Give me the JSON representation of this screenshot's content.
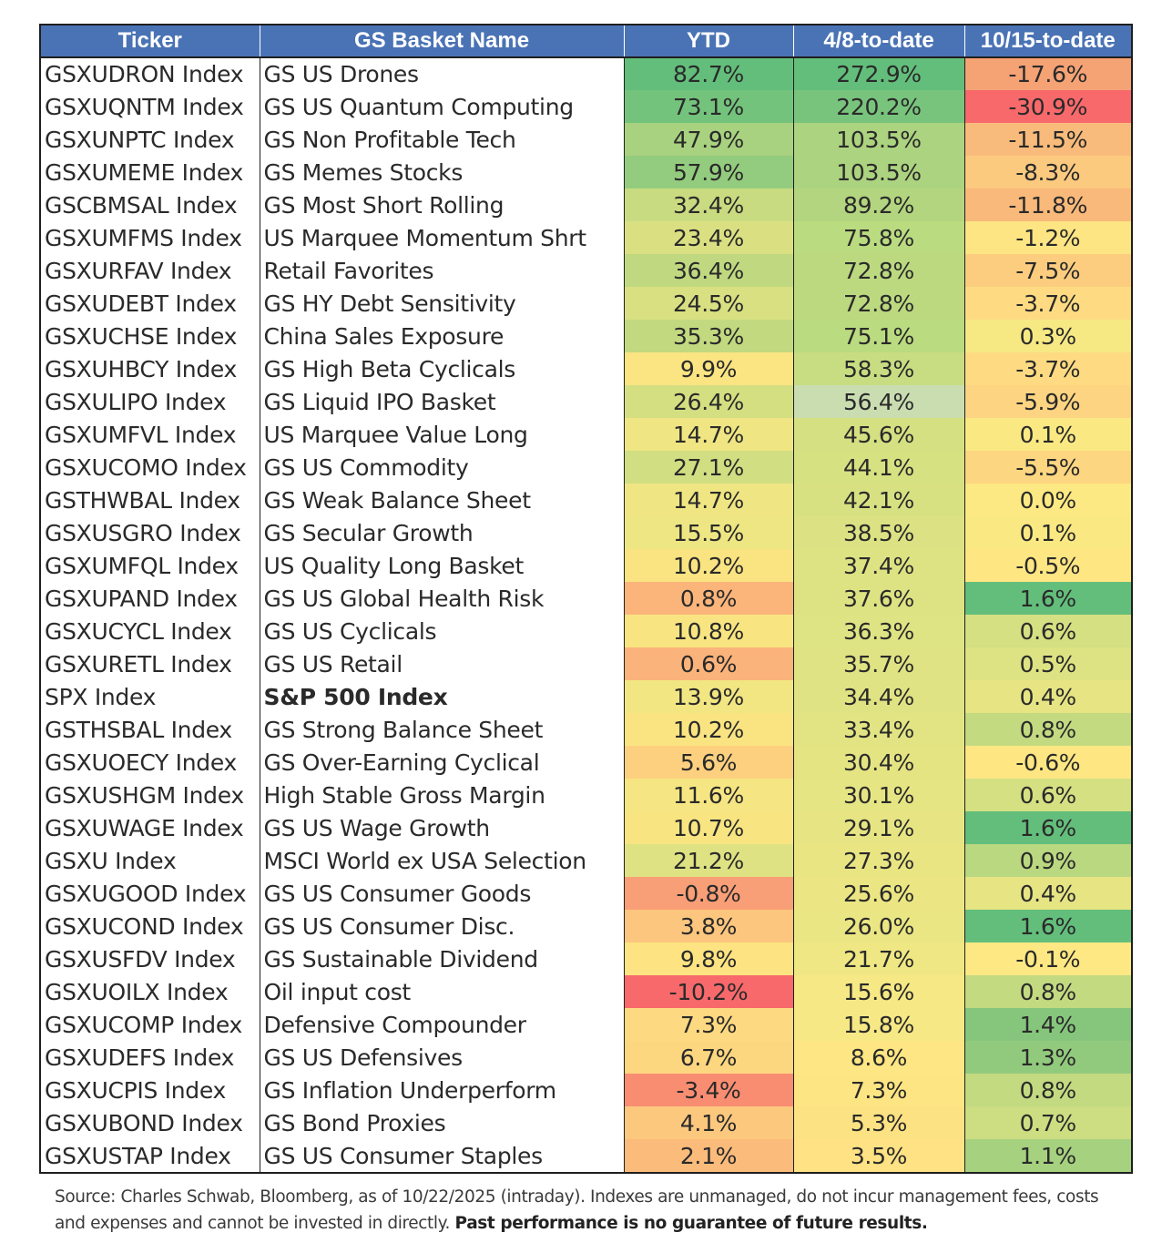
{
  "table": {
    "headers": [
      "Ticker",
      "GS Basket Name",
      "YTD",
      "4/8-to-date",
      "10/15-to-date"
    ],
    "rows": [
      {
        "ticker": "GSXUDRON Index",
        "name": "GS US Drones",
        "ytd": "82.7%",
        "apr": "272.9%",
        "oct": "-17.6%",
        "bold": false,
        "ytd_color": "#63be7b",
        "apr_color": "#63be7b",
        "oct_color": "#f5a275"
      },
      {
        "ticker": "GSXUQNTM Index",
        "name": "GS US Quantum Computing",
        "ytd": "73.1%",
        "apr": "220.2%",
        "oct": "-30.9%",
        "bold": false,
        "ytd_color": "#74c37c",
        "apr_color": "#79c47d",
        "oct_color": "#f8696b"
      },
      {
        "ticker": "GSXUNPTC Index",
        "name": "GS Non Profitable Tech",
        "ytd": "47.9%",
        "apr": "103.5%",
        "oct": "-11.5%",
        "bold": false,
        "ytd_color": "#a8d27f",
        "apr_color": "#acd37f",
        "oct_color": "#f9bb7b"
      },
      {
        "ticker": "GSXUMEME Index",
        "name": "GS Memes Stocks",
        "ytd": "57.9%",
        "apr": "103.5%",
        "oct": "-8.3%",
        "bold": false,
        "ytd_color": "#93cc7e",
        "apr_color": "#acd37f",
        "oct_color": "#fcca7f"
      },
      {
        "ticker": "GSCBMSAL Index",
        "name": "GS Most Short Rolling",
        "ytd": "32.4%",
        "apr": "89.2%",
        "oct": "-11.8%",
        "bold": false,
        "ytd_color": "#c8db80",
        "apr_color": "#b3d57f",
        "oct_color": "#f9b97a"
      },
      {
        "ticker": "GSXUMFMS Index",
        "name": "US Marquee Momentum Shrt",
        "ytd": "23.4%",
        "apr": "75.8%",
        "oct": "-1.2%",
        "bold": false,
        "ytd_color": "#dae082",
        "apr_color": "#badb80",
        "oct_color": "#fee583"
      },
      {
        "ticker": "GSXURFAV Index",
        "name": "Retail Favorites",
        "ytd": "36.4%",
        "apr": "72.8%",
        "oct": "-7.5%",
        "bold": false,
        "ytd_color": "#c0d980",
        "apr_color": "#bcd980",
        "oct_color": "#fccd7f"
      },
      {
        "ticker": "GSXUDEBT Index",
        "name": "GS HY Debt Sensitivity",
        "ytd": "24.5%",
        "apr": "72.8%",
        "oct": "-3.7%",
        "bold": false,
        "ytd_color": "#d8e082",
        "apr_color": "#bcd980",
        "oct_color": "#fedb82"
      },
      {
        "ticker": "GSXUCHSE Index",
        "name": "China Sales Exposure",
        "ytd": "35.3%",
        "apr": "75.1%",
        "oct": "0.3%",
        "bold": false,
        "ytd_color": "#c2d980",
        "apr_color": "#badb80",
        "oct_color": "#f6e984"
      },
      {
        "ticker": "GSXUHBCY Index",
        "name": "GS High Beta Cyclicals",
        "ytd": "9.9%",
        "apr": "58.3%",
        "oct": "-3.7%",
        "bold": false,
        "ytd_color": "#fbe482",
        "apr_color": "#c8dd81",
        "oct_color": "#fedb82"
      },
      {
        "ticker": "GSXULIPO Index",
        "name": "GS Liquid IPO Basket",
        "ytd": "26.4%",
        "apr": "56.4%",
        "oct": "-5.9%",
        "bold": false,
        "ytd_color": "#d3df81",
        "apr_color": "#caddb1",
        "oct_color": "#fdd481"
      },
      {
        "ticker": "GSXUMFVL Index",
        "name": "US Marquee Value Long",
        "ytd": "14.7%",
        "apr": "45.6%",
        "oct": "0.1%",
        "bold": false,
        "ytd_color": "#efe683",
        "apr_color": "#d4e082",
        "oct_color": "#fae983"
      },
      {
        "ticker": "GSXUCOMO Index",
        "name": "GS US Commodity",
        "ytd": "27.1%",
        "apr": "44.1%",
        "oct": "-5.5%",
        "bold": false,
        "ytd_color": "#d1de81",
        "apr_color": "#d6e182",
        "oct_color": "#fdd681"
      },
      {
        "ticker": "GSTHWBAL Index",
        "name": "GS Weak Balance Sheet",
        "ytd": "14.7%",
        "apr": "42.1%",
        "oct": "0.0%",
        "bold": false,
        "ytd_color": "#efe683",
        "apr_color": "#d8e182",
        "oct_color": "#fde983"
      },
      {
        "ticker": "GSXUSGRO Index",
        "name": "GS Secular Growth",
        "ytd": "15.5%",
        "apr": "38.5%",
        "oct": "0.1%",
        "bold": false,
        "ytd_color": "#ede683",
        "apr_color": "#dce283",
        "oct_color": "#fae983"
      },
      {
        "ticker": "GSXUMFQL Index",
        "name": "US Quality Long Basket",
        "ytd": "10.2%",
        "apr": "37.4%",
        "oct": "-0.5%",
        "bold": false,
        "ytd_color": "#fae482",
        "apr_color": "#dde383",
        "oct_color": "#fee683"
      },
      {
        "ticker": "GSXUPAND Index",
        "name": "GS US Global Health Risk",
        "ytd": "0.8%",
        "apr": "37.6%",
        "oct": "1.6%",
        "bold": false,
        "ytd_color": "#fbb57a",
        "apr_color": "#dde383",
        "oct_color": "#63be7b"
      },
      {
        "ticker": "GSXUCYCL Index",
        "name": "GS US Cyclicals",
        "ytd": "10.8%",
        "apr": "36.3%",
        "oct": "0.6%",
        "bold": false,
        "ytd_color": "#f8e582",
        "apr_color": "#dee383",
        "oct_color": "#d4e082"
      },
      {
        "ticker": "GSXURETL Index",
        "name": "GS US Retail",
        "ytd": "0.6%",
        "apr": "35.7%",
        "oct": "0.5%",
        "bold": false,
        "ytd_color": "#fab37a",
        "apr_color": "#dfe383",
        "oct_color": "#dde383"
      },
      {
        "ticker": "SPX Index",
        "name": "S&P 500 Index",
        "ytd": "13.9%",
        "apr": "34.4%",
        "oct": "0.4%",
        "bold": true,
        "ytd_color": "#f2e683",
        "apr_color": "#e0e383",
        "oct_color": "#e6e483"
      },
      {
        "ticker": "GSTHSBAL Index",
        "name": "GS Strong Balance Sheet",
        "ytd": "10.2%",
        "apr": "33.4%",
        "oct": "0.8%",
        "bold": false,
        "ytd_color": "#fae482",
        "apr_color": "#e2e483",
        "oct_color": "#c3da81"
      },
      {
        "ticker": "GSXUOECY Index",
        "name": "GS Over-Earning Cyclical",
        "ytd": "5.6%",
        "apr": "30.4%",
        "oct": "-0.6%",
        "bold": false,
        "ytd_color": "#fdd07f",
        "apr_color": "#e5e483",
        "oct_color": "#fee683"
      },
      {
        "ticker": "GSXUSHGM Index",
        "name": "High Stable Gross Margin",
        "ytd": "11.6%",
        "apr": "30.1%",
        "oct": "0.6%",
        "bold": false,
        "ytd_color": "#f6e583",
        "apr_color": "#e6e583",
        "oct_color": "#d4e082"
      },
      {
        "ticker": "GSXUWAGE Index",
        "name": "GS US Wage Growth",
        "ytd": "10.7%",
        "apr": "29.1%",
        "oct": "1.6%",
        "bold": false,
        "ytd_color": "#f8e582",
        "apr_color": "#e7e583",
        "oct_color": "#63be7b"
      },
      {
        "ticker": "GSXU Index",
        "name": "MSCI World ex USA Selection",
        "ytd": "21.2%",
        "apr": "27.3%",
        "oct": "0.9%",
        "bold": false,
        "ytd_color": "#dfe283",
        "apr_color": "#e9e583",
        "oct_color": "#bad880"
      },
      {
        "ticker": "GSXUGOOD Index",
        "name": "GS US Consumer Goods",
        "ytd": "-0.8%",
        "apr": "25.6%",
        "oct": "0.4%",
        "bold": false,
        "ytd_color": "#f99f77",
        "apr_color": "#ebe683",
        "oct_color": "#e6e483"
      },
      {
        "ticker": "GSXUCOND Index",
        "name": "GS US Consumer Disc.",
        "ytd": "3.8%",
        "apr": "26.0%",
        "oct": "1.6%",
        "bold": false,
        "ytd_color": "#fcc67e",
        "apr_color": "#eae683",
        "oct_color": "#63be7b"
      },
      {
        "ticker": "GSXUSFDV Index",
        "name": "GS Sustainable Dividend",
        "ytd": "9.8%",
        "apr": "21.7%",
        "oct": "-0.1%",
        "bold": false,
        "ytd_color": "#fde382",
        "apr_color": "#efe783",
        "oct_color": "#fee883"
      },
      {
        "ticker": "GSXUOILX Index",
        "name": "Oil input cost",
        "ytd": "-10.2%",
        "apr": "15.6%",
        "oct": "0.8%",
        "bold": false,
        "ytd_color": "#f8696b",
        "apr_color": "#f6e884",
        "oct_color": "#c3da81"
      },
      {
        "ticker": "GSXUCOMP Index",
        "name": "Defensive Compounder",
        "ytd": "7.3%",
        "apr": "15.8%",
        "oct": "1.4%",
        "bold": false,
        "ytd_color": "#fdd981",
        "apr_color": "#f6e884",
        "oct_color": "#86c67c"
      },
      {
        "ticker": "GSXUDEFS Index",
        "name": "GS US Defensives",
        "ytd": "6.7%",
        "apr": "8.6%",
        "oct": "1.3%",
        "bold": false,
        "ytd_color": "#fdd680",
        "apr_color": "#fde683",
        "oct_color": "#92ca7d"
      },
      {
        "ticker": "GSXUCPIS Index",
        "name": "GS Inflation Underperform",
        "ytd": "-3.4%",
        "apr": "7.3%",
        "oct": "0.8%",
        "bold": false,
        "ytd_color": "#f98d72",
        "apr_color": "#fde583",
        "oct_color": "#c3da81"
      },
      {
        "ticker": "GSXUBOND Index",
        "name": "GS Bond Proxies",
        "ytd": "4.1%",
        "apr": "5.3%",
        "oct": "0.7%",
        "bold": false,
        "ytd_color": "#fcc87e",
        "apr_color": "#fde283",
        "oct_color": "#ccdd82"
      },
      {
        "ticker": "GSXUSTAP Index",
        "name": "GS US Consumer Staples",
        "ytd": "2.1%",
        "apr": "3.5%",
        "oct": "1.1%",
        "bold": false,
        "ytd_color": "#fbbb7b",
        "apr_color": "#fee283",
        "oct_color": "#a6d17f"
      }
    ]
  },
  "footnote": {
    "text": "Source: Charles Schwab, Bloomberg, as of 10/22/2025 (intraday). Indexes are unmanaged, do not incur management fees, costs and expenses and cannot be invested in directly. ",
    "bold_text": "Past performance is no guarantee of future results."
  }
}
